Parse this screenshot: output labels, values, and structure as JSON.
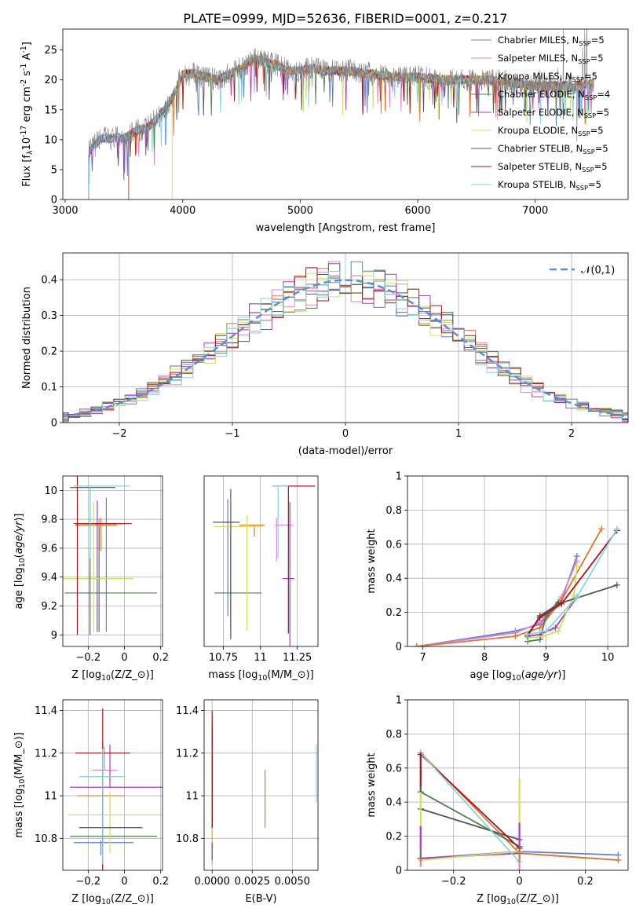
{
  "figure": {
    "title": "PLATE=0999, MJD=52636, FIBERID=0001, z=0.217"
  },
  "colors": {
    "miles_chabrier": "#5b7fd6",
    "miles_salpeter": "#e082d8",
    "miles_kroupa": "#e0762c",
    "elodie_chabrier": "#4f7f4a",
    "elodie_salpeter": "#a63cc0",
    "elodie_kroupa": "#cfe15a",
    "stelib_chabrier": "#555555",
    "stelib_salpeter": "#aa1414",
    "stelib_kroupa": "#84d6de",
    "data_gray": "#808080"
  },
  "legend_models": [
    "Chabrier MILES, N$_{SSP}$=5",
    "Salpeter MILES, N$_{SSP}$=5",
    "Kroupa MILES, N$_{SSP}$=5",
    "Chabrier ELODIE, N$_{SSP}$=4",
    "Salpeter ELODIE, N$_{SSP}$=5",
    "Kroupa ELODIE, N$_{SSP}$=5",
    "Chabrier STELIB, N$_{SSP}$=5",
    "Salpeter STELIB, N$_{SSP}$=5",
    "Kroupa STELIB, N$_{SSP}$=5"
  ],
  "chart_data": [
    {
      "id": "spectrum",
      "type": "line",
      "xlabel": "wavelength [Angstrom, rest frame]",
      "ylabel": "Flux [f$_\\lambda$10$^{-17}$ erg cm$^{-2}$ s$^{-1}$ A$^{-1}$]",
      "xlim": [
        2980,
        7790
      ],
      "ylim": [
        0,
        28.5
      ],
      "xticks": [
        3000,
        4000,
        5000,
        6000,
        7000
      ],
      "yticks": [
        0,
        5,
        10,
        15,
        20,
        25
      ],
      "spectrum_knots": [
        [
          3200,
          7.8
        ],
        [
          3300,
          10.2
        ],
        [
          3500,
          10.3
        ],
        [
          3600,
          11.5
        ],
        [
          3700,
          12
        ],
        [
          3800,
          14
        ],
        [
          3900,
          16.5
        ],
        [
          4000,
          21
        ],
        [
          4100,
          21
        ],
        [
          4200,
          20.5
        ],
        [
          4300,
          20
        ],
        [
          4400,
          21
        ],
        [
          4500,
          22
        ],
        [
          4600,
          23.5
        ],
        [
          4700,
          23
        ],
        [
          4800,
          22.5
        ],
        [
          4900,
          21.5
        ],
        [
          5000,
          21.5
        ],
        [
          5100,
          22
        ],
        [
          5200,
          21.5
        ],
        [
          5400,
          21.5
        ],
        [
          5600,
          21
        ],
        [
          5800,
          20.5
        ],
        [
          6000,
          20.5
        ],
        [
          6200,
          20
        ],
        [
          6400,
          20
        ],
        [
          6600,
          20
        ],
        [
          6800,
          19.5
        ],
        [
          7000,
          19
        ],
        [
          7200,
          19
        ],
        [
          7400,
          19
        ],
        [
          7500,
          19.5
        ]
      ],
      "model_start_wavelengths": [
        3200,
        3200,
        3540,
        3200,
        3200,
        3910,
        3200,
        3540,
        3200
      ]
    },
    {
      "id": "residuals",
      "type": "line",
      "xlabel": "(data-model)/error",
      "ylabel": "Normed distribution",
      "xlim": [
        -2.5,
        2.5
      ],
      "ylim": [
        0,
        0.475
      ],
      "xticks": [
        -2,
        -1,
        0,
        1,
        2
      ],
      "yticks": [
        0.0,
        0.1,
        0.2,
        0.3,
        0.4
      ],
      "legend": "$\\mathcal{N}(0,1)$"
    },
    {
      "id": "age_vs_Z",
      "type": "scatter",
      "xlabel": "Z [log$_{10}$($Z/Z_\\odot$)]",
      "ylabel": "age  [log$_{10}$($age/yr$)]",
      "xlim": [
        -0.34,
        0.21
      ],
      "ylim": [
        8.92,
        10.1
      ],
      "xticks": [
        -0.2,
        0.0,
        0.2
      ],
      "yticks": [
        9.0,
        9.2,
        9.4,
        9.6,
        9.8,
        10.0
      ],
      "points": [
        {
          "x": -0.1,
          "y": 9.39,
          "xerr": [
            0.25,
            0.15
          ],
          "yerr": [
            0.37,
            0.56
          ]
        },
        {
          "x": -0.14,
          "y": 9.77,
          "xerr": [
            0.02,
            0.1
          ],
          "yerr": [
            0.19,
            0.04
          ]
        },
        {
          "x": -0.13,
          "y": 9.76,
          "xerr": [
            0.14,
            0.09
          ],
          "yerr": [
            0.18,
            0.05
          ]
        },
        {
          "x": -0.14,
          "y": 9.29,
          "xerr": [
            0.19,
            0.32
          ],
          "yerr": [
            0.27,
            0.46
          ]
        },
        {
          "x": -0.15,
          "y": 9.77,
          "xerr": [
            0.12,
            0.14
          ],
          "yerr": [
            0.75,
            0.16
          ]
        },
        {
          "x": -0.17,
          "y": 9.39,
          "xerr": [
            0.18,
            0.22
          ],
          "yerr": [
            0.37,
            0.53
          ]
        },
        {
          "x": -0.19,
          "y": 10.02,
          "xerr": [
            0.11,
            0.14
          ],
          "yerr": [
            1.02,
            0.0
          ]
        },
        {
          "x": -0.26,
          "y": 9.77,
          "xerr": [
            0.02,
            0.3
          ],
          "yerr": [
            0.77,
            0.36
          ]
        },
        {
          "x": -0.19,
          "y": 10.03,
          "xerr": [
            0.09,
            0.22
          ],
          "yerr": [
            0.5,
            0.0
          ]
        }
      ]
    },
    {
      "id": "age_vs_mass",
      "type": "scatter",
      "xlabel": "mass [log$_{10}$($M/M_\\odot$)]",
      "ylabel": "",
      "xlim": [
        10.62,
        11.39
      ],
      "ylim": [
        8.92,
        10.1
      ],
      "xticks": [
        10.75,
        11.0,
        11.25
      ],
      "points": [
        {
          "x": 10.78,
          "y": 9.78,
          "xerr": [
            0.02,
            0.05
          ],
          "yerr": [
            0.65,
            0.16
          ]
        },
        {
          "x": 11.11,
          "y": 9.76,
          "xerr": [
            0.01,
            0.11
          ],
          "yerr": [
            0.25,
            0.05
          ]
        },
        {
          "x": 10.96,
          "y": 9.76,
          "xerr": [
            0.1,
            0.07
          ],
          "yerr": [
            0.08,
            0.0
          ]
        },
        {
          "x": 10.8,
          "y": 9.29,
          "xerr": [
            0.11,
            0.21
          ],
          "yerr": [
            0.25,
            0.43
          ]
        },
        {
          "x": 11.2,
          "y": 9.39,
          "xerr": [
            0.05,
            0.03
          ],
          "yerr": [
            0.62,
            0.53
          ]
        },
        {
          "x": 10.91,
          "y": 9.75,
          "xerr": [
            0.22,
            0.1
          ],
          "yerr": [
            0.72,
            0.08
          ]
        },
        {
          "x": 10.8,
          "y": 9.78,
          "xerr": [
            0.12,
            0.06
          ],
          "yerr": [
            0.81,
            0.23
          ]
        },
        {
          "x": 11.19,
          "y": 10.03,
          "xerr": [
            0.11,
            0.18
          ],
          "yerr": [
            1.02,
            0.0
          ]
        },
        {
          "x": 11.12,
          "y": 10.03,
          "xerr": [
            0.04,
            0.07
          ],
          "yerr": [
            0.5,
            0.0
          ]
        }
      ]
    },
    {
      "id": "massweight_vs_age",
      "type": "line",
      "xlabel": "age  [log$_{10}$($age/yr$)]",
      "ylabel": "mass weight",
      "xlim": [
        6.75,
        10.33
      ],
      "ylim": [
        0,
        1
      ],
      "xticks": [
        7,
        8,
        9,
        10
      ],
      "yticks": [
        0.0,
        0.2,
        0.4,
        0.6,
        0.8,
        1.0
      ],
      "series": [
        {
          "x": [
            6.9,
            8.5,
            8.9,
            9.25,
            9.5
          ],
          "values": [
            0.0,
            0.09,
            0.13,
            0.27,
            0.53
          ]
        },
        {
          "x": [
            6.9,
            8.5,
            8.9,
            9.25,
            9.5
          ],
          "values": [
            0.0,
            0.08,
            0.14,
            0.29,
            0.5
          ]
        },
        {
          "x": [
            6.9,
            8.5,
            8.9,
            9.25,
            9.9
          ],
          "values": [
            0.0,
            0.06,
            0.11,
            0.27,
            0.69
          ]
        },
        {
          "x": [
            8.7,
            8.9,
            9.0,
            9.2
          ],
          "values": [
            0.03,
            0.04,
            0.18,
            0.26
          ]
        },
        {
          "x": [
            8.7,
            8.9,
            9.15,
            9.5
          ],
          "values": [
            0.06,
            0.07,
            0.11,
            0.29
          ]
        },
        {
          "x": [
            8.7,
            8.95,
            9.2,
            9.45,
            9.5
          ],
          "values": [
            0.05,
            0.06,
            0.09,
            0.3,
            0.47
          ]
        },
        {
          "x": [
            8.7,
            8.9,
            9.2,
            10.15
          ],
          "values": [
            0.06,
            0.18,
            0.25,
            0.36
          ]
        },
        {
          "x": [
            8.7,
            8.9,
            9.25,
            10.15
          ],
          "values": [
            0.07,
            0.17,
            0.25,
            0.68
          ]
        },
        {
          "x": [
            8.7,
            9.0,
            9.5,
            10.15
          ],
          "values": [
            0.07,
            0.09,
            0.29,
            0.69
          ]
        }
      ]
    },
    {
      "id": "mass_vs_Z",
      "type": "scatter",
      "xlabel": "Z [log$_{10}$($Z/Z_\\odot$)]",
      "ylabel": "mass [log$_{10}$($M/M_\\odot$)]",
      "xlim": [
        -0.34,
        0.21
      ],
      "ylim": [
        10.65,
        11.45
      ],
      "xticks": [
        -0.2,
        0.0,
        0.2
      ],
      "yticks": [
        10.8,
        11.0,
        11.2,
        11.4
      ],
      "points": [
        {
          "x": -0.13,
          "y": 10.78,
          "xerr": [
            0.15,
            0.18
          ],
          "yerr": [
            0.06,
            0.01
          ]
        },
        {
          "x": -0.11,
          "y": 11.12,
          "xerr": [
            0.07,
            0.07
          ],
          "yerr": [
            0.0,
            0.11
          ]
        },
        {
          "x": -0.12,
          "y": 11.0,
          "xerr": [
            0.14,
            0.12
          ],
          "yerr": [
            0.11,
            0.04
          ]
        },
        {
          "x": -0.12,
          "y": 10.81,
          "xerr": [
            0.18,
            0.3
          ],
          "yerr": [
            0.06,
            0.44
          ]
        },
        {
          "x": -0.08,
          "y": 11.04,
          "xerr": [
            0.22,
            0.3
          ],
          "yerr": [
            0.0,
            0.2
          ]
        },
        {
          "x": -0.08,
          "y": 10.91,
          "xerr": [
            0.23,
            0.3
          ],
          "yerr": [
            0.18,
            0.11
          ]
        },
        {
          "x": -0.1,
          "y": 10.85,
          "xerr": [
            0.15,
            0.2
          ],
          "yerr": [
            0.0,
            0.0
          ]
        },
        {
          "x": -0.12,
          "y": 11.2,
          "xerr": [
            0.15,
            0.15
          ],
          "yerr": [
            0.55,
            0.21
          ]
        },
        {
          "x": -0.12,
          "y": 11.09,
          "xerr": [
            0.13,
            0.12
          ],
          "yerr": [
            0.41,
            0.13
          ]
        }
      ]
    },
    {
      "id": "mass_vs_EBV",
      "type": "scatter",
      "xlabel": "E(B-V)",
      "ylabel": "",
      "xlim": [
        -0.0005,
        0.0066
      ],
      "ylim": [
        10.65,
        11.45
      ],
      "xticks": [
        0.0,
        0.0025,
        0.005
      ],
      "xticklabels": [
        "0.0000",
        "0.0025",
        "0.0050"
      ],
      "yticks": [
        10.8,
        11.0,
        11.2,
        11.4
      ],
      "points": [
        {
          "x": 0.0,
          "y": 10.95,
          "yerr": [
            0.25,
            0.36
          ]
        },
        {
          "x": 0.0,
          "y": 11.0,
          "yerr": [
            0.32,
            0.2
          ]
        },
        {
          "x": 0.0033,
          "y": 10.99,
          "yerr": [
            0.14,
            0.13
          ]
        },
        {
          "x": 0.0,
          "y": 11.0,
          "yerr": [
            0.3,
            0.2
          ]
        },
        {
          "x": 0.0,
          "y": 11.0,
          "yerr": [
            0.25,
            0.2
          ]
        },
        {
          "x": 0.0,
          "y": 10.9,
          "yerr": [
            0.12,
            0.2
          ]
        },
        {
          "x": 0.0,
          "y": 11.05,
          "yerr": [
            0.2,
            0.3
          ]
        },
        {
          "x": 0.0,
          "y": 11.1,
          "yerr": [
            0.25,
            0.3
          ]
        },
        {
          "x": 0.0065,
          "y": 11.1,
          "yerr": [
            0.13,
            0.14
          ]
        }
      ]
    },
    {
      "id": "massweight_vs_Z",
      "type": "line",
      "xlabel": "Z [log$_{10}$($Z/Z_\\odot$)]",
      "ylabel": "mass weight",
      "xlim": [
        -0.34,
        0.33
      ],
      "ylim": [
        0,
        1
      ],
      "xticks": [
        -0.2,
        0.0,
        0.2
      ],
      "yticks": [
        0.0,
        0.2,
        0.4,
        0.6,
        0.8,
        1.0
      ],
      "series": [
        {
          "x": [
            -0.3,
            0.0,
            0.3
          ],
          "values": [
            0.07,
            0.11,
            0.09
          ]
        },
        {
          "x": [
            -0.3,
            0.0,
            0.3
          ],
          "values": [
            0.07,
            0.1,
            0.06
          ]
        },
        {
          "x": [
            -0.3,
            0.0,
            0.3
          ],
          "values": [
            0.69,
            0.1,
            0.06
          ]
        },
        {
          "x": [
            -0.3,
            0.0
          ],
          "values": [
            0.46,
            0.14
          ]
        },
        {
          "x": [
            -0.3,
            0.0
          ],
          "values": [
            0.07,
            0.1
          ]
        },
        {
          "x": [
            -0.3,
            0.0
          ],
          "values": [
            0.06,
            0.11
          ]
        },
        {
          "x": [
            -0.3,
            0.0
          ],
          "values": [
            0.36,
            0.18
          ]
        },
        {
          "x": [
            -0.3,
            0.0
          ],
          "values": [
            0.68,
            0.13
          ]
        },
        {
          "x": [
            -0.3,
            0.0
          ],
          "values": [
            0.69,
            0.05
          ]
        }
      ],
      "vertical_marks": [
        {
          "x": -0.3,
          "values": [
            0.02,
            0.05,
            0.07,
            0.11,
            0.26,
            0.46,
            0.49,
            0.69
          ]
        },
        {
          "x": 0.0,
          "values": [
            0.0,
            0.05,
            0.11,
            0.13,
            0.28,
            0.54
          ]
        }
      ]
    }
  ]
}
